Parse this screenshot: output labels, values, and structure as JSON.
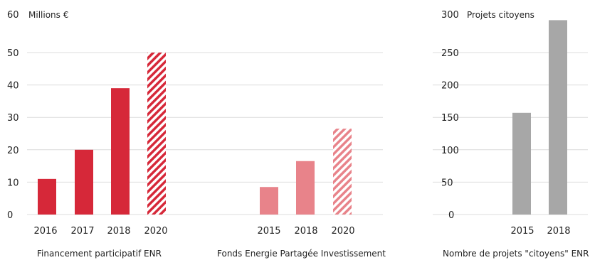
{
  "chart_data": [
    {
      "type": "bar",
      "title": "",
      "xlabel": "Financement participatif ENR",
      "ylabel": "Millions €",
      "ylim": [
        0,
        60
      ],
      "yticks": [
        0,
        10,
        20,
        30,
        40,
        50,
        60
      ],
      "grid": true,
      "categories": [
        "2016",
        "2017",
        "2018",
        "2020"
      ],
      "values": [
        11,
        20,
        39,
        50
      ],
      "styles": [
        "solid",
        "solid",
        "solid",
        "hatched"
      ],
      "color": "#d62839"
    },
    {
      "type": "bar",
      "title": "",
      "xlabel": "Fonds Energie Partagée Investissement",
      "ylabel": "",
      "ylim": [
        0,
        60
      ],
      "grid": true,
      "categories": [
        "2015",
        "2018",
        "2020"
      ],
      "values": [
        8.5,
        16.5,
        26.5
      ],
      "styles": [
        "solid",
        "solid",
        "hatched"
      ],
      "color": "#e8838a"
    },
    {
      "type": "bar",
      "title": "",
      "xlabel": "Nombre de projets \"citoyens\" ENR",
      "ylabel": "Projets citoyens",
      "ylim": [
        0,
        300
      ],
      "yticks": [
        0,
        50,
        100,
        150,
        200,
        250,
        300
      ],
      "grid": true,
      "categories": [
        "2015",
        "2018"
      ],
      "values": [
        157,
        300
      ],
      "styles": [
        "solid",
        "solid"
      ],
      "color": "#a7a7a7"
    }
  ]
}
